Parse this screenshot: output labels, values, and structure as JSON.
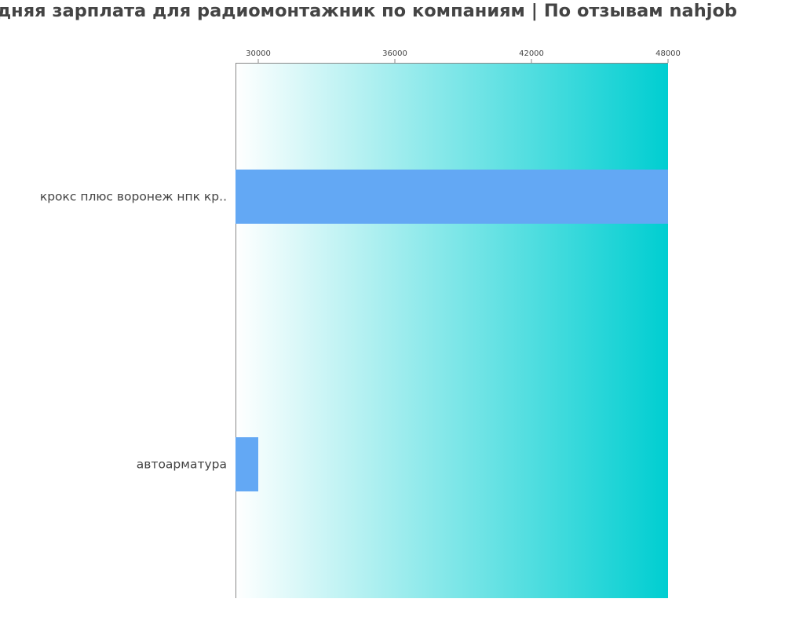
{
  "chart_data": {
    "type": "bar",
    "orientation": "horizontal",
    "title": "дняя зарплата для радиомонтажник по компаниям  | По отзывам nahjob",
    "categories": [
      "крокс плюс воронеж нпк кр..",
      "автоарматура"
    ],
    "values": [
      48000,
      30000
    ],
    "xlim": [
      29000,
      48000
    ],
    "xticks": [
      "30000",
      "36000",
      "42000",
      "48000"
    ],
    "tick_values": [
      30000,
      36000,
      42000,
      48000
    ],
    "xlabel": "",
    "ylabel": "",
    "grid": false,
    "axis_position": "top",
    "colors": {
      "bar": "#63a8f4",
      "background_gradient_start": "#ffffff",
      "background_gradient_end": "#00ced1",
      "text": "#444444"
    }
  }
}
